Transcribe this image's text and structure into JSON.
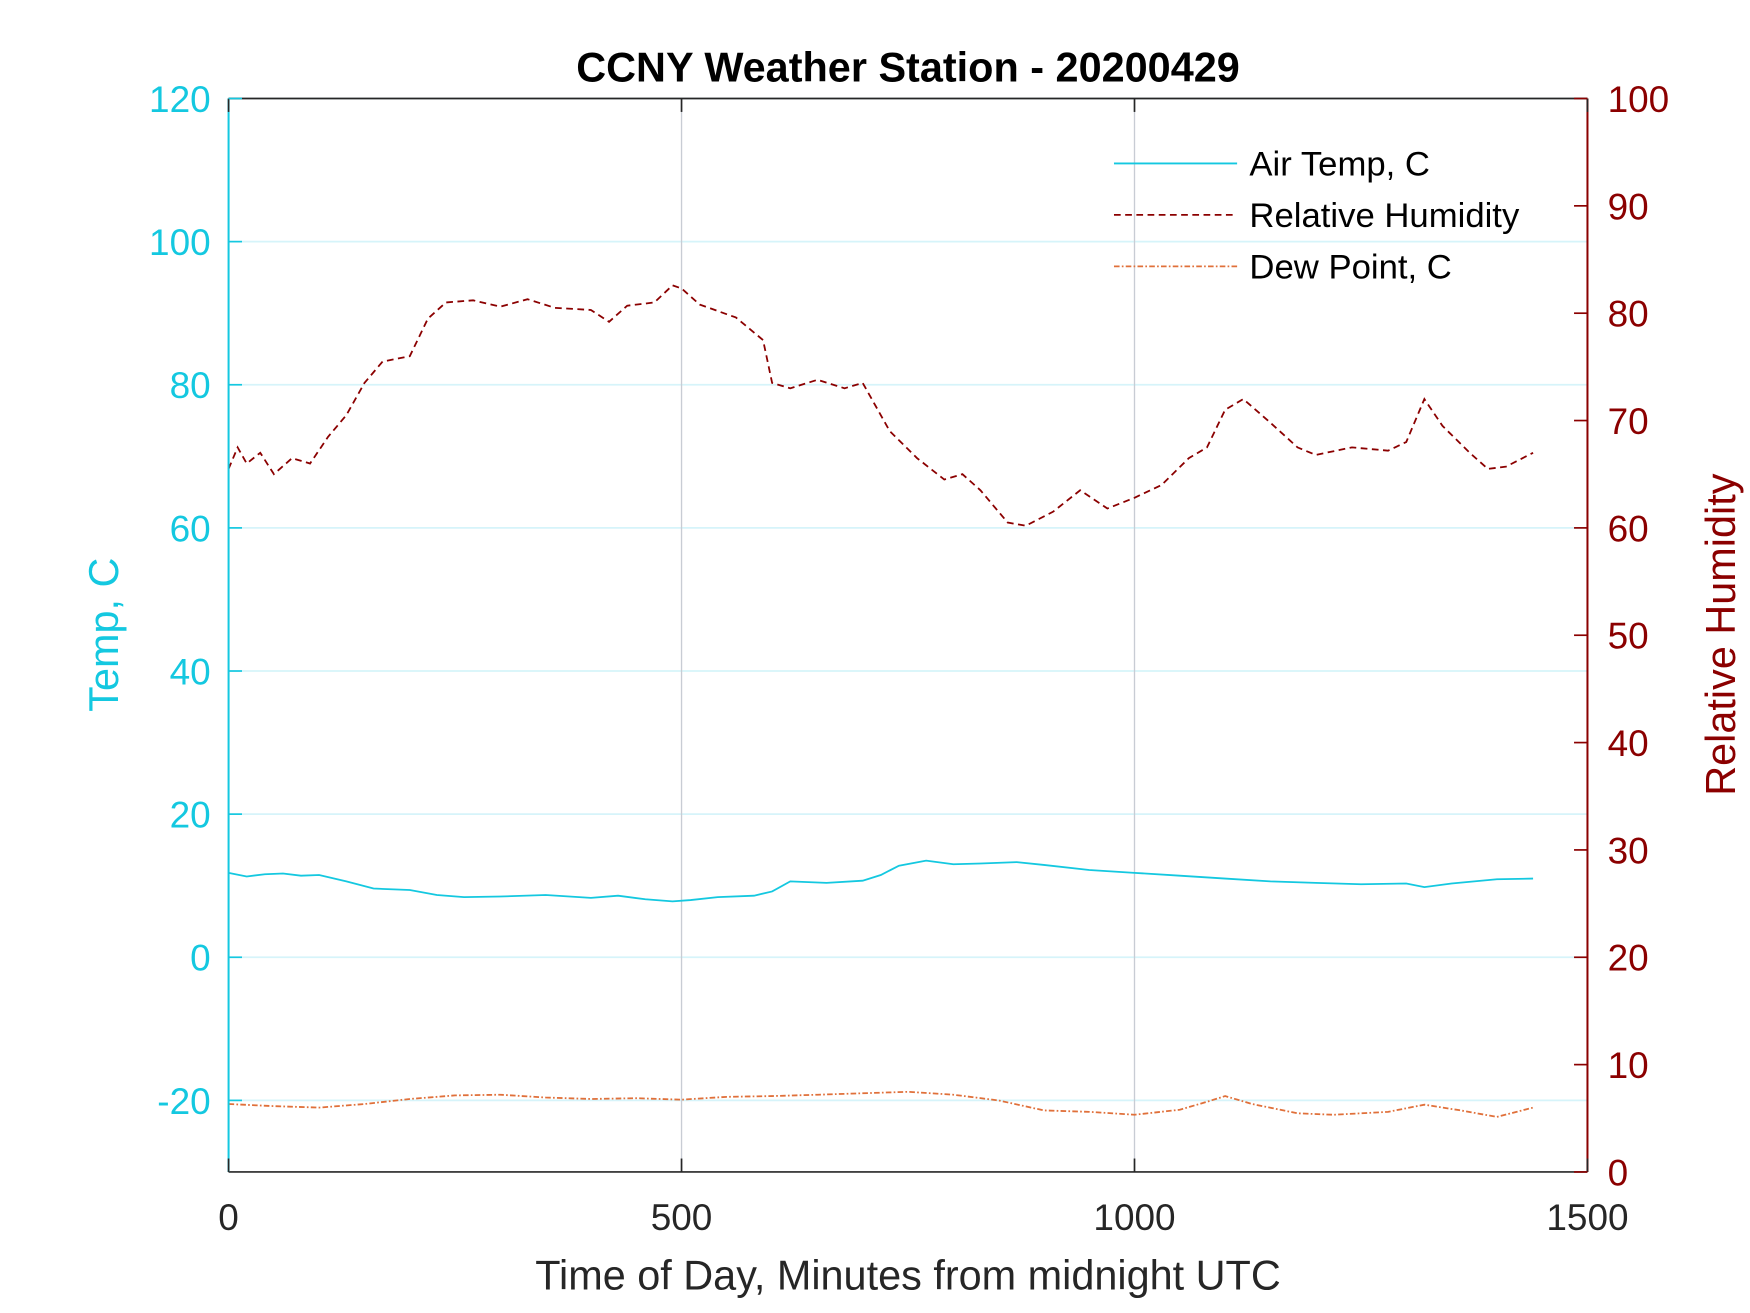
{
  "chart_data": {
    "type": "line",
    "title": "CCNY Weather Station - 20200429",
    "xlabel": "Time of Day, Minutes from midnight UTC",
    "ylabel_left": "Temp, C",
    "ylabel_right": "Relative Humidity",
    "xlim": [
      0,
      1500
    ],
    "ylim_left": [
      -30,
      120
    ],
    "ylim_right": [
      0,
      100
    ],
    "x_ticks": [
      "0",
      "500",
      "1000",
      "1500"
    ],
    "x_tick_values": [
      0,
      500,
      1000,
      1500
    ],
    "y_left_ticks": [
      "-20",
      "0",
      "20",
      "40",
      "60",
      "80",
      "100",
      "120"
    ],
    "y_left_tick_values": [
      -20,
      0,
      20,
      40,
      60,
      80,
      100,
      120
    ],
    "y_right_ticks": [
      "0",
      "10",
      "20",
      "30",
      "40",
      "50",
      "60",
      "70",
      "80",
      "90",
      "100"
    ],
    "y_right_tick_values": [
      0,
      10,
      20,
      30,
      40,
      50,
      60,
      70,
      80,
      90,
      100
    ],
    "grid": {
      "horizontal": true,
      "vertical": true
    },
    "legend_position": "top-right",
    "colors": {
      "left_axis": "#14c8e0",
      "right_axis": "#8b0000",
      "vgrid": "#c8ccd4",
      "hgrid": "#d6f4fa"
    },
    "series": [
      {
        "name": "Air Temp, C",
        "axis": "left",
        "style": "solid",
        "color": "#14c8e0",
        "x": [
          0,
          20,
          40,
          60,
          80,
          100,
          130,
          160,
          200,
          230,
          260,
          300,
          350,
          400,
          430,
          460,
          490,
          510,
          540,
          580,
          600,
          620,
          660,
          700,
          720,
          740,
          770,
          800,
          830,
          870,
          900,
          950,
          1000,
          1050,
          1100,
          1150,
          1200,
          1250,
          1300,
          1320,
          1350,
          1400,
          1440
        ],
        "y": [
          11.8,
          11.3,
          11.6,
          11.7,
          11.4,
          11.5,
          10.6,
          9.6,
          9.4,
          8.7,
          8.4,
          8.5,
          8.7,
          8.3,
          8.6,
          8.1,
          7.8,
          8.0,
          8.4,
          8.6,
          9.2,
          10.6,
          10.4,
          10.7,
          11.5,
          12.8,
          13.5,
          13.0,
          13.1,
          13.3,
          12.9,
          12.2,
          11.8,
          11.4,
          11.0,
          10.6,
          10.4,
          10.2,
          10.3,
          9.8,
          10.3,
          10.9,
          11.0
        ]
      },
      {
        "name": "Relative Humidity",
        "axis": "right",
        "style": "dashed",
        "color": "#8b0000",
        "x": [
          0,
          10,
          20,
          35,
          50,
          70,
          90,
          110,
          130,
          150,
          170,
          200,
          220,
          240,
          270,
          300,
          330,
          360,
          400,
          420,
          440,
          470,
          490,
          500,
          520,
          560,
          590,
          600,
          620,
          650,
          680,
          700,
          730,
          760,
          790,
          810,
          830,
          860,
          880,
          910,
          940,
          970,
          1000,
          1030,
          1060,
          1080,
          1100,
          1120,
          1150,
          1180,
          1200,
          1240,
          1280,
          1300,
          1320,
          1340,
          1370,
          1390,
          1410,
          1440
        ],
        "y": [
          65.5,
          67.5,
          66.0,
          67.0,
          65.0,
          66.5,
          66.0,
          68.5,
          70.5,
          73.5,
          75.5,
          76.0,
          79.5,
          81.0,
          81.2,
          80.6,
          81.3,
          80.5,
          80.3,
          79.2,
          80.7,
          81.0,
          82.6,
          82.3,
          80.8,
          79.6,
          77.5,
          73.5,
          73.0,
          73.8,
          73.0,
          73.5,
          69.0,
          66.5,
          64.5,
          65.0,
          63.5,
          60.5,
          60.2,
          61.5,
          63.5,
          61.8,
          62.8,
          64.0,
          66.5,
          67.5,
          71.0,
          72.0,
          69.8,
          67.5,
          66.8,
          67.5,
          67.2,
          68.0,
          72.0,
          69.5,
          67.0,
          65.5,
          65.7,
          67.0
        ]
      },
      {
        "name": "Dew Point, C",
        "axis": "left",
        "style": "dash-dot",
        "color": "#e0703a",
        "x": [
          0,
          50,
          100,
          150,
          200,
          250,
          300,
          350,
          400,
          450,
          500,
          550,
          600,
          650,
          700,
          750,
          800,
          850,
          900,
          950,
          1000,
          1050,
          1080,
          1100,
          1130,
          1180,
          1220,
          1280,
          1320,
          1360,
          1400,
          1440
        ],
        "y": [
          -20.5,
          -20.8,
          -21.0,
          -20.5,
          -19.8,
          -19.3,
          -19.2,
          -19.6,
          -19.8,
          -19.7,
          -19.9,
          -19.5,
          -19.4,
          -19.2,
          -19.0,
          -18.8,
          -19.2,
          -20.0,
          -21.4,
          -21.6,
          -22.0,
          -21.3,
          -20.2,
          -19.4,
          -20.5,
          -21.8,
          -22.0,
          -21.6,
          -20.6,
          -21.4,
          -22.3,
          -21.0
        ]
      }
    ]
  }
}
